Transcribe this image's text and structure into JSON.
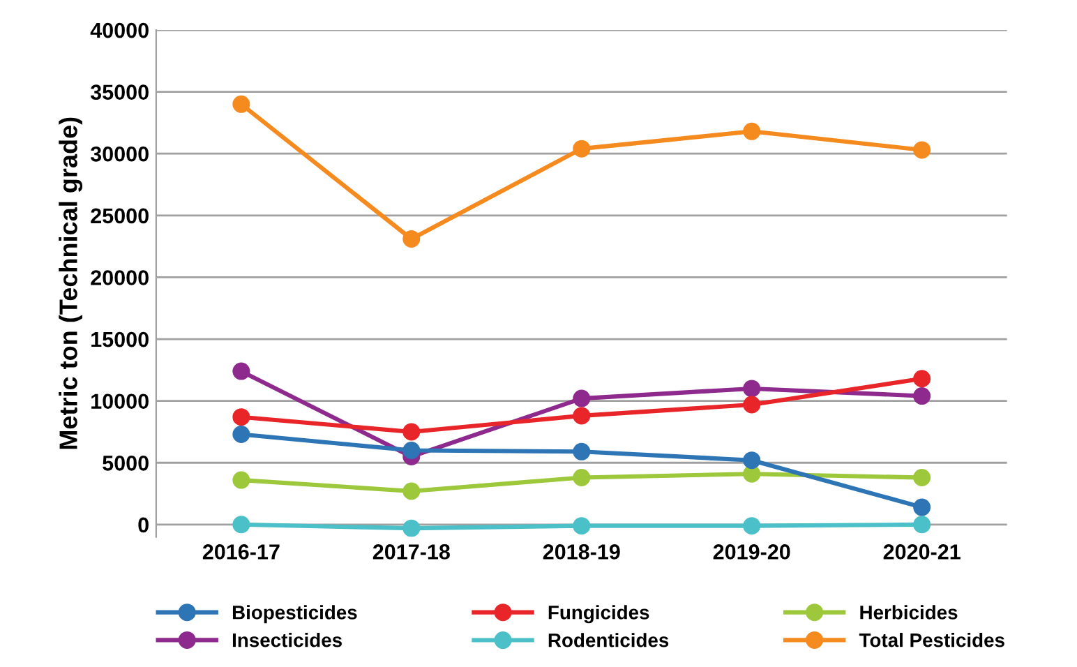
{
  "chart_data": {
    "type": "line",
    "ylabel": "Metric ton (Technical grade)",
    "categories": [
      "2016-17",
      "2017-18",
      "2018-19",
      "2019-20",
      "2020-21"
    ],
    "series": [
      {
        "name": "Biopesticides",
        "color": "#2e75b6",
        "values": [
          7300,
          6000,
          5900,
          5200,
          1400
        ]
      },
      {
        "name": "Fungicides",
        "color": "#e8262a",
        "values": [
          8700,
          7500,
          8800,
          9700,
          11800
        ]
      },
      {
        "name": "Herbicides",
        "color": "#9dc83b",
        "values": [
          3600,
          2700,
          3800,
          4100,
          3800
        ]
      },
      {
        "name": "Insecticides",
        "color": "#8e2a8e",
        "values": [
          12400,
          5500,
          10200,
          11000,
          10400
        ]
      },
      {
        "name": "Rodenticides",
        "color": "#4bc0c8",
        "values": [
          0,
          -300,
          -100,
          -100,
          0
        ]
      },
      {
        "name": "Total Pesticides",
        "color": "#f58a1f",
        "values": [
          34000,
          23100,
          30400,
          31800,
          30300
        ]
      }
    ],
    "ylim": [
      -1000,
      40000
    ],
    "yticks": [
      0,
      5000,
      10000,
      15000,
      20000,
      25000,
      30000,
      35000,
      40000
    ],
    "grid": "y",
    "legend": "bottom",
    "marker": "circle",
    "line_style": "solid"
  }
}
